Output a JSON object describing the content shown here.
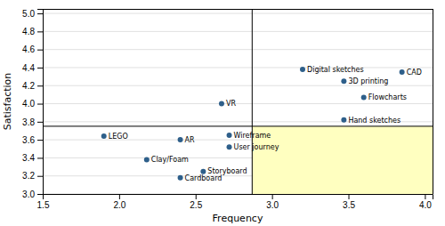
{
  "chart_data": {
    "type": "scatter",
    "xlabel": "Frequency",
    "ylabel": "Satisfaction",
    "labels": [
      "CAD",
      "Digital sketches",
      "3D printing",
      "Flowcharts",
      "Hand sketches",
      "VR",
      "AR",
      "Wireframe",
      "User journey",
      "LEGO",
      "Clay/Foam",
      "Storyboard",
      "Cardboard"
    ],
    "x": [
      3.85,
      3.2,
      3.47,
      3.6,
      3.47,
      2.67,
      2.4,
      2.72,
      2.72,
      1.9,
      2.18,
      2.55,
      2.4
    ],
    "values": [
      4.35,
      4.38,
      4.25,
      4.07,
      3.82,
      4.0,
      3.6,
      3.65,
      3.52,
      3.64,
      3.38,
      3.25,
      3.18
    ],
    "color": "#2e5f8a",
    "vline": 2.87,
    "hline": 3.75,
    "xlim": [
      1.5,
      4.05
    ],
    "ylim": [
      3.0,
      5.05
    ],
    "xticks": [
      1.5,
      {
        "value": 2.0,
        "label": "2.0"
      },
      2.5,
      {
        "value": 3.0,
        "label": "3.0"
      },
      3.5,
      {
        "value": 4.0,
        "label": "4.0"
      }
    ],
    "yticks": [
      {
        "value": 3.0,
        "label": "3.0"
      },
      3.2,
      3.4,
      3.6,
      3.8,
      {
        "value": 4.0,
        "label": "4.0"
      },
      4.2,
      4.4,
      4.6,
      4.8,
      {
        "value": 5.0,
        "label": "5.0"
      }
    ],
    "grid": true
  }
}
